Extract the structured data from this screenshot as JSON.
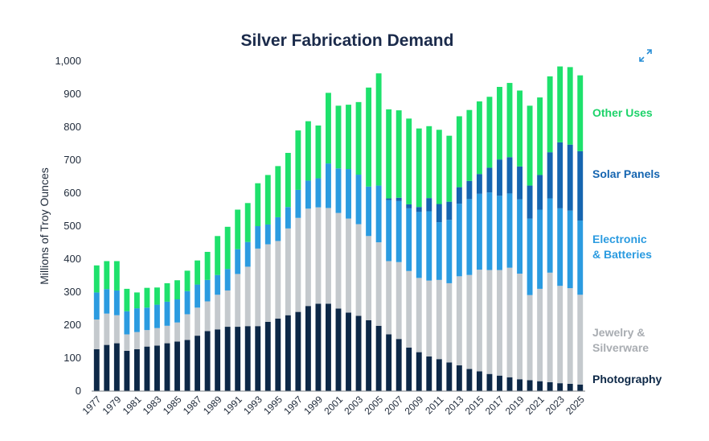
{
  "chart_data": {
    "type": "bar",
    "stacked": true,
    "title": "Silver Fabrication Demand",
    "ylabel": "Millions of Troy Ounces",
    "xlabel": "",
    "ylim": [
      0,
      1000
    ],
    "yticks": [
      "0",
      "100",
      "200",
      "300",
      "400",
      "500",
      "600",
      "700",
      "800",
      "900",
      "1,000"
    ],
    "x_tick_labels": [
      "1977",
      "1979",
      "1981",
      "1983",
      "1985",
      "1987",
      "1989",
      "1991",
      "1993",
      "1995",
      "1997",
      "1999",
      "2001",
      "2003",
      "2005",
      "2007",
      "2009",
      "2011",
      "2013",
      "2015",
      "2017",
      "2019",
      "2021",
      "2023",
      "2025"
    ],
    "grid": false,
    "legend_placement": "right",
    "categories": [
      "1977",
      "1978",
      "1979",
      "1980",
      "1981",
      "1982",
      "1983",
      "1984",
      "1985",
      "1986",
      "1987",
      "1988",
      "1989",
      "1990",
      "1991",
      "1992",
      "1993",
      "1994",
      "1995",
      "1996",
      "1997",
      "1998",
      "1999",
      "2000",
      "2001",
      "2002",
      "2003",
      "2004",
      "2005",
      "2006",
      "2007",
      "2008",
      "2009",
      "2010",
      "2011",
      "2012",
      "2013",
      "2014",
      "2015",
      "2016",
      "2017",
      "2018",
      "2019",
      "2020",
      "2021",
      "2022",
      "2023",
      "2024",
      "2025"
    ],
    "series": [
      {
        "name": "Photography",
        "color": "#0d2847",
        "values": [
          127,
          140,
          145,
          122,
          127,
          135,
          138,
          145,
          150,
          155,
          168,
          182,
          187,
          195,
          195,
          197,
          197,
          210,
          220,
          230,
          240,
          258,
          265,
          265,
          250,
          238,
          228,
          215,
          198,
          172,
          158,
          132,
          118,
          105,
          97,
          87,
          78,
          67,
          60,
          52,
          47,
          42,
          36,
          33,
          30,
          27,
          24,
          22,
          20
        ]
      },
      {
        "name": "Jewelry & Silverware",
        "label": "Jewelry &\nSilverware",
        "color": "#c4c9cd",
        "values": [
          90,
          95,
          85,
          50,
          52,
          50,
          53,
          53,
          58,
          78,
          85,
          90,
          105,
          110,
          160,
          180,
          235,
          235,
          235,
          263,
          285,
          295,
          292,
          290,
          290,
          285,
          278,
          255,
          253,
          222,
          233,
          232,
          225,
          230,
          240,
          240,
          270,
          285,
          308,
          315,
          320,
          332,
          320,
          258,
          280,
          332,
          295,
          290,
          272
        ]
      },
      {
        "name": "Electronic & Batteries",
        "label": "Electronic\n& Batteries",
        "color": "#2b9be0",
        "values": [
          82,
          74,
          75,
          70,
          72,
          68,
          71,
          73,
          70,
          70,
          70,
          65,
          60,
          65,
          75,
          75,
          68,
          60,
          72,
          65,
          85,
          85,
          88,
          135,
          135,
          150,
          150,
          150,
          172,
          185,
          185,
          190,
          200,
          210,
          175,
          192,
          220,
          230,
          230,
          235,
          225,
          225,
          225,
          232,
          240,
          225,
          235,
          235,
          225
        ]
      },
      {
        "name": "Solar Panels",
        "color": "#1565b0",
        "values": [
          0,
          0,
          0,
          0,
          0,
          0,
          0,
          0,
          0,
          0,
          0,
          0,
          0,
          0,
          0,
          0,
          0,
          0,
          0,
          0,
          0,
          0,
          0,
          0,
          0,
          0,
          0,
          0,
          0,
          5,
          10,
          12,
          15,
          40,
          55,
          55,
          50,
          55,
          60,
          75,
          110,
          110,
          100,
          100,
          105,
          140,
          200,
          200,
          210
        ]
      },
      {
        "name": "Other Uses",
        "color": "#1ee16c",
        "values": [
          82,
          85,
          89,
          68,
          48,
          60,
          52,
          56,
          58,
          62,
          73,
          85,
          118,
          128,
          120,
          118,
          130,
          150,
          155,
          164,
          180,
          180,
          160,
          214,
          190,
          195,
          220,
          300,
          340,
          270,
          265,
          260,
          238,
          218,
          225,
          200,
          215,
          215,
          220,
          215,
          220,
          225,
          230,
          242,
          235,
          230,
          230,
          235,
          230
        ]
      }
    ]
  }
}
